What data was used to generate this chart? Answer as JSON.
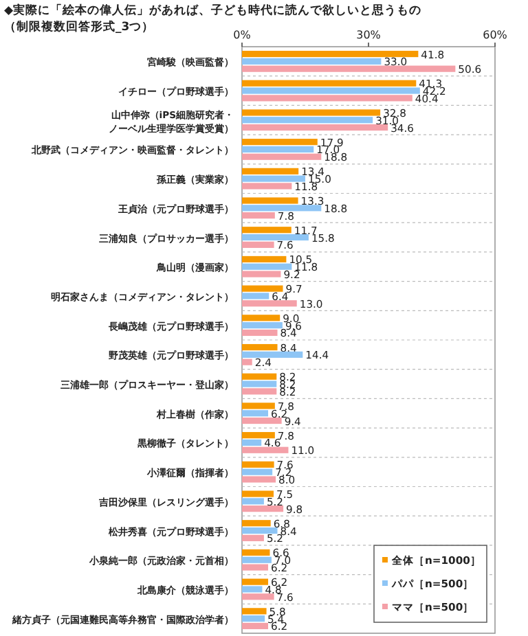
{
  "chart_data": {
    "type": "bar",
    "orientation": "horizontal",
    "title": "◆実際に「絵本の偉人伝」があれば、子ども時代に読んで欲しいと思うもの",
    "subtitle": "（制限複数回答形式_3つ）",
    "categories": [
      "宮崎駿（映画監督）",
      "イチロー（プロ野球選手）",
      "山中伸弥（iPS細胞研究者・ノーベル生理学医学賞受賞）",
      "北野武（コメディアン・映画監督・タレント）",
      "孫正義（実業家）",
      "王貞治（元プロ野球選手）",
      "三浦知良（プロサッカー選手）",
      "鳥山明（漫画家）",
      "明石家さんま（コメディアン・タレント）",
      "長嶋茂雄（元プロ野球選手）",
      "野茂英雄（元プロ野球選手）",
      "三浦雄一郎（プロスキーヤー・登山家）",
      "村上春樹（作家）",
      "黒柳徹子（タレント）",
      "小澤征爾（指揮者）",
      "吉田沙保里（レスリング選手）",
      "松井秀喜（元プロ野球選手）",
      "小泉純一郎（元政治家・元首相）",
      "北島康介（競泳選手）",
      "緒方貞子（元国連難民高等弁務官・国際政治学者）"
    ],
    "series": [
      {
        "name": "全体［n=1000］",
        "color": "#f79a00",
        "values": [
          41.8,
          41.3,
          32.8,
          17.9,
          13.4,
          13.3,
          11.7,
          10.5,
          9.7,
          9.0,
          8.4,
          8.2,
          7.8,
          7.8,
          7.6,
          7.5,
          6.8,
          6.6,
          6.2,
          5.8
        ],
        "value_labels": [
          "41.8",
          "41.3",
          "32.8",
          "17.9",
          "13.4",
          "13.3",
          "11.7",
          "10.5",
          "9.7",
          "9.0",
          "8.4",
          "8.2",
          "7.8",
          "7.8",
          "7.6",
          "7.5",
          "6.8",
          "6.6",
          "6.2",
          "5.8"
        ]
      },
      {
        "name": "パパ［n=500］",
        "color": "#8ec5f5",
        "values": [
          33.0,
          42.2,
          31.0,
          17.0,
          15.0,
          18.8,
          15.8,
          11.8,
          6.4,
          9.6,
          14.4,
          8.2,
          6.2,
          4.6,
          7.2,
          5.2,
          8.4,
          7.0,
          4.8,
          5.4
        ],
        "value_labels": [
          "33.0",
          "42.2",
          "31.0",
          "17.0",
          "15.0",
          "18.8",
          "15.8",
          "11.8",
          "6.4",
          "9.6",
          "14.4",
          "8.2",
          "6.2",
          "4.6",
          "7.2",
          "5.2",
          "8.4",
          "7.0",
          "4.8",
          "5.4"
        ]
      },
      {
        "name": "ママ［n=500］",
        "color": "#f4a0a8",
        "values": [
          50.6,
          40.4,
          34.6,
          18.8,
          11.8,
          7.8,
          7.6,
          9.2,
          13.0,
          8.4,
          2.4,
          8.2,
          9.4,
          11.0,
          8.0,
          9.8,
          5.2,
          6.2,
          7.6,
          6.2
        ],
        "value_labels": [
          "50.6",
          "40.4",
          "34.6",
          "18.8",
          "11.8",
          "7.8",
          "7.6",
          "9.2",
          "13.0",
          "8.4",
          "2.4",
          "8.2",
          "9.4",
          "11.0",
          "8.0",
          "9.8",
          "5.2",
          "6.2",
          "7.6",
          "6.2"
        ]
      }
    ],
    "xlim": [
      0,
      60
    ],
    "xticks": [
      {
        "value": 0,
        "label": "0%"
      },
      {
        "value": 30,
        "label": "30%"
      },
      {
        "value": 60,
        "label": "60%"
      }
    ],
    "legend": "bottom right"
  }
}
